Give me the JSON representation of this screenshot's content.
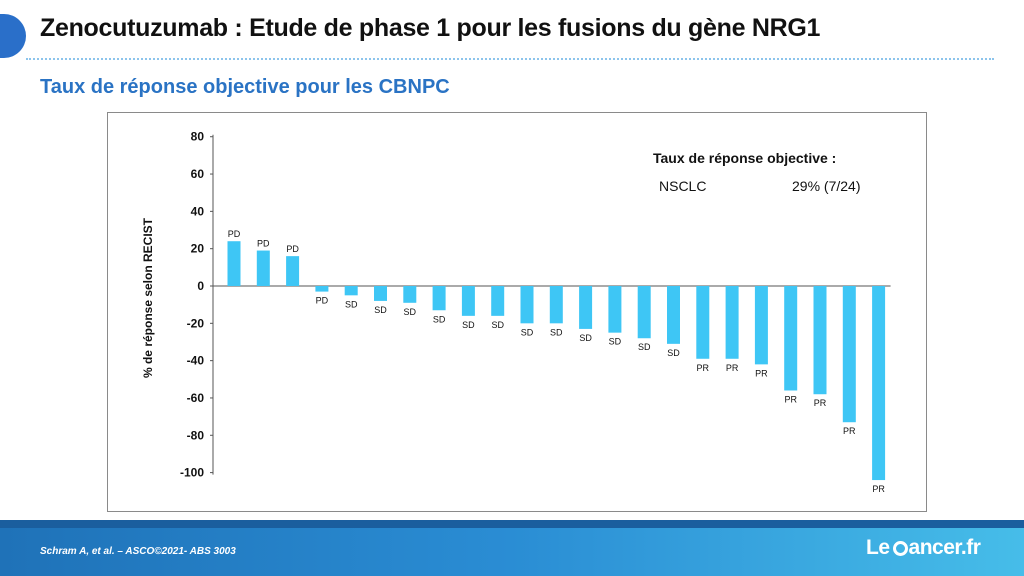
{
  "slide": {
    "title": "Zenocutuzumab : Etude de phase 1 pour les fusions du gène NRG1",
    "subtitle": "Taux de réponse objective pour les CBNPC"
  },
  "annotation": {
    "heading": "Taux de réponse objective :",
    "label": "NSCLC",
    "value": "29% (7/24)"
  },
  "footer": {
    "citation": "Schram A, et al. – ASCO©2021- ABS 3003",
    "logo_left": "Le",
    "logo_right": "ancer.fr"
  },
  "colors": {
    "bar": "#3ec6f5",
    "accent": "#2a73c4",
    "corner": "#2a6fc9"
  },
  "chart_data": {
    "type": "bar",
    "title": "",
    "xlabel": "",
    "ylabel": "% de réponse selon RECIST",
    "ylim": [
      -100,
      80
    ],
    "yticks": [
      80,
      60,
      40,
      20,
      0,
      -20,
      -40,
      -60,
      -80,
      -100
    ],
    "grid": false,
    "values": [
      24,
      19,
      16,
      -3,
      -5,
      -8,
      -9,
      -13,
      -16,
      -16,
      -20,
      -20,
      -23,
      -25,
      -28,
      -31,
      -39,
      -39,
      -42,
      -56,
      -58,
      -73,
      -104
    ],
    "labels": [
      "PD",
      "PD",
      "PD",
      "PD",
      "SD",
      "SD",
      "SD",
      "SD",
      "SD",
      "SD",
      "SD",
      "SD",
      "SD",
      "SD",
      "SD",
      "SD",
      "PR",
      "PR",
      "PR",
      "PR",
      "PR",
      "PR",
      "PR"
    ]
  }
}
